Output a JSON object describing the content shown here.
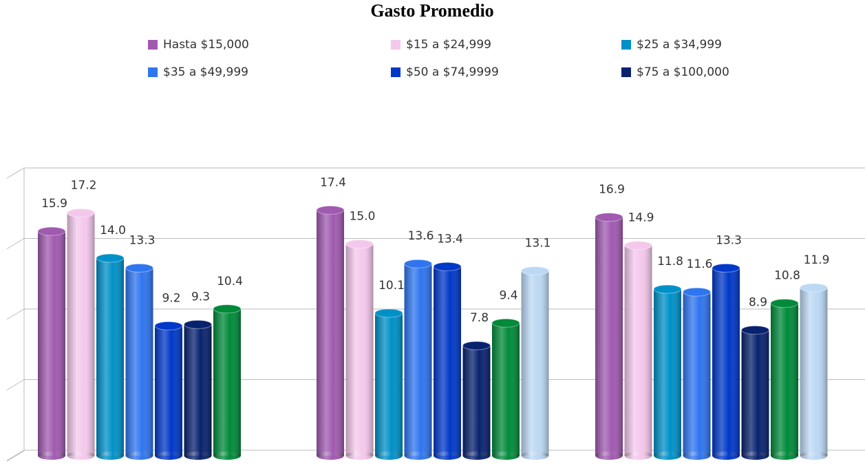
{
  "chart_data": {
    "type": "bar",
    "title": "Gasto Promedio",
    "categories": [
      null,
      null,
      null
    ],
    "series": [
      {
        "name": "Hasta $15,000",
        "color": "#a05ab0",
        "values": [
          15.9,
          17.4,
          16.9
        ],
        "value_labels": [
          "15.9",
          "17.4",
          "16.9"
        ]
      },
      {
        "name": "$15 a $24,999",
        "color": "#f4c8ec",
        "values": [
          17.2,
          15,
          14.9
        ],
        "value_labels": [
          "17.2",
          "15.0",
          "14.9"
        ]
      },
      {
        "name": "$25 a $34,999",
        "color": "#0090c8",
        "values": [
          14,
          10.1,
          11.8
        ],
        "value_labels": [
          "14.0",
          "10.1",
          "11.8"
        ]
      },
      {
        "name": "$35 a $49,999",
        "color": "#2f75f0",
        "values": [
          13.3,
          13.6,
          11.6
        ],
        "value_labels": [
          "13.3",
          "13.6",
          "11.6"
        ]
      },
      {
        "name": "$50 a $74,9999",
        "color": "#0038c8",
        "values": [
          9.2,
          13.4,
          13.3
        ],
        "value_labels": [
          "9.2",
          "13.4",
          "13.3"
        ]
      },
      {
        "name": "$75 a $100,000",
        "color": "#08226e",
        "values": [
          9.3,
          7.8,
          8.9
        ],
        "value_labels": [
          "9.3",
          "7.8",
          "8.9"
        ]
      },
      {
        "color": "#008a3a",
        "values": [
          10.4,
          9.4,
          10.8
        ],
        "value_labels": [
          "10.4",
          "9.4",
          "10.8"
        ]
      },
      {
        "color": "#bcd8f4",
        "values": [
          null,
          13.1,
          11.9
        ],
        "value_labels": [
          null,
          "13.1",
          "11.9"
        ]
      }
    ],
    "ylim": [
      0,
      20
    ],
    "yticks": [
      0,
      5,
      10,
      15,
      20
    ],
    "grid": true
  }
}
